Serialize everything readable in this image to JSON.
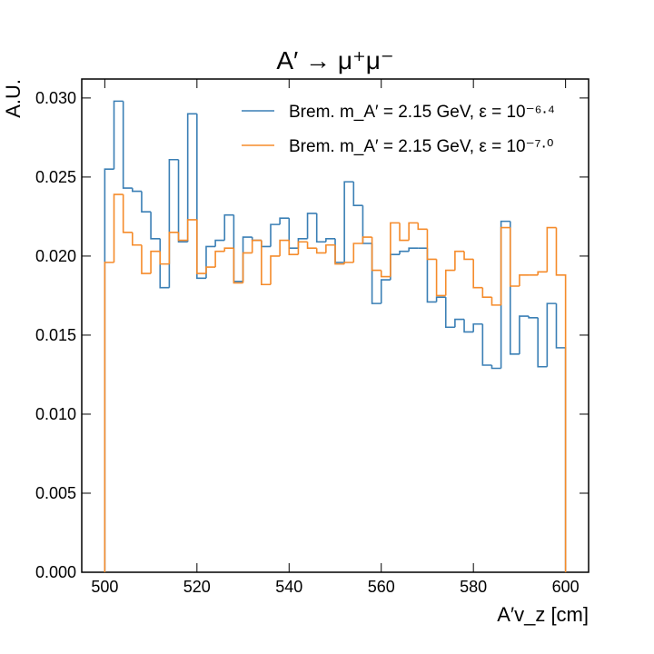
{
  "chart_data": {
    "type": "histogram",
    "title": "A′ → μ⁺μ⁻",
    "x_label": "A′v_z [cm]",
    "y_label": "A.U.",
    "bins": [
      500,
      502,
      504,
      506,
      508,
      510,
      512,
      514,
      516,
      518,
      520,
      522,
      524,
      526,
      528,
      530,
      532,
      534,
      536,
      538,
      540,
      542,
      544,
      546,
      548,
      550,
      552,
      554,
      556,
      558,
      560,
      562,
      564,
      566,
      568,
      570,
      572,
      574,
      576,
      578,
      580,
      582,
      584,
      586,
      588,
      590,
      592,
      594,
      596,
      598,
      600
    ],
    "series": [
      {
        "name": "Brem. m_A′ = 2.15 GeV, ε = 10⁻⁶·⁴",
        "color": "#3a7fb5",
        "values": [
          0.0255,
          0.0298,
          0.0243,
          0.0241,
          0.0228,
          0.0211,
          0.018,
          0.0261,
          0.0209,
          0.029,
          0.0186,
          0.0206,
          0.021,
          0.0226,
          0.0184,
          0.0212,
          0.021,
          0.0206,
          0.022,
          0.0224,
          0.0205,
          0.0211,
          0.0227,
          0.0209,
          0.0211,
          0.0196,
          0.0247,
          0.0232,
          0.0208,
          0.017,
          0.0185,
          0.0201,
          0.0203,
          0.0205,
          0.0205,
          0.0171,
          0.0174,
          0.0155,
          0.016,
          0.0152,
          0.0157,
          0.0131,
          0.0129,
          0.0222,
          0.0138,
          0.0162,
          0.0161,
          0.013,
          0.017,
          0.0142
        ]
      },
      {
        "name": "Brem. m_A′ = 2.15 GeV, ε = 10⁻⁷·⁰",
        "color": "#f58b2a",
        "values": [
          0.0196,
          0.0239,
          0.0215,
          0.0207,
          0.0189,
          0.0203,
          0.0195,
          0.0215,
          0.021,
          0.0223,
          0.0189,
          0.0193,
          0.0203,
          0.0205,
          0.0183,
          0.0202,
          0.021,
          0.0182,
          0.02,
          0.021,
          0.0201,
          0.0209,
          0.0205,
          0.0202,
          0.0207,
          0.0195,
          0.0196,
          0.0208,
          0.0212,
          0.0191,
          0.0187,
          0.0221,
          0.021,
          0.0221,
          0.0217,
          0.0198,
          0.0175,
          0.0191,
          0.0203,
          0.0198,
          0.018,
          0.0174,
          0.0169,
          0.0218,
          0.0181,
          0.0188,
          0.0188,
          0.019,
          0.0218,
          0.0188
        ]
      }
    ],
    "xlim": [
      495,
      605
    ],
    "ylim": [
      0,
      0.0312
    ],
    "xticks": [
      500,
      520,
      540,
      560,
      580,
      600
    ],
    "yticks": [
      {
        "value": 0,
        "label": "0.000"
      },
      {
        "value": 0.005,
        "label": "0.005"
      },
      {
        "value": 0.01,
        "label": "0.010"
      },
      {
        "value": 0.015,
        "label": "0.015"
      },
      {
        "value": 0.02,
        "label": "0.020"
      },
      {
        "value": 0.025,
        "label": "0.025"
      },
      {
        "value": 0.03,
        "label": "0.030"
      }
    ],
    "legend": "upper right",
    "grid": false
  }
}
